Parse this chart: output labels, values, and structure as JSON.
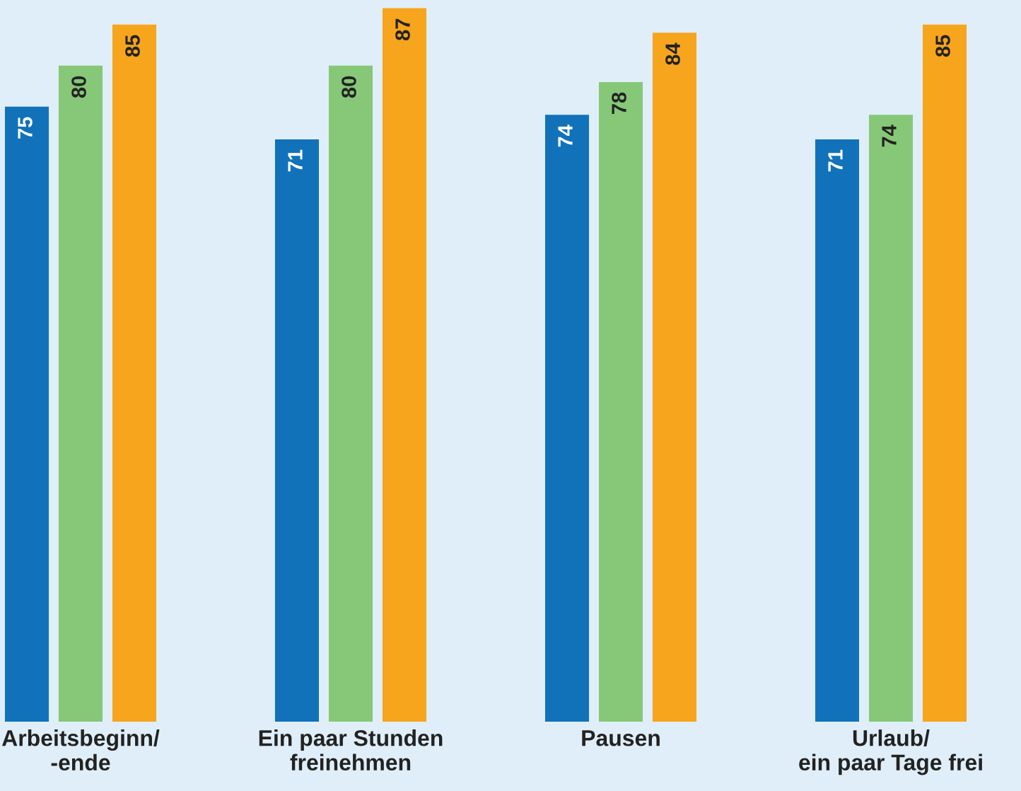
{
  "chart_data": {
    "type": "bar",
    "categories": [
      "Arbeitsbeginn/\n-ende",
      "Ein paar Stunden\nfreinehmen",
      "Pausen",
      "Urlaub/\nein paar Tage frei"
    ],
    "series": [
      {
        "color": "#1172ba",
        "values": [
          75,
          71,
          74,
          71
        ]
      },
      {
        "color": "#86c877",
        "values": [
          80,
          80,
          78,
          74
        ]
      },
      {
        "color": "#f6a51d",
        "values": [
          85,
          87,
          84,
          85
        ]
      }
    ],
    "ylim": [
      0,
      88
    ],
    "data_labels": true,
    "tick_labels": "x",
    "grid": false,
    "legend": false
  }
}
